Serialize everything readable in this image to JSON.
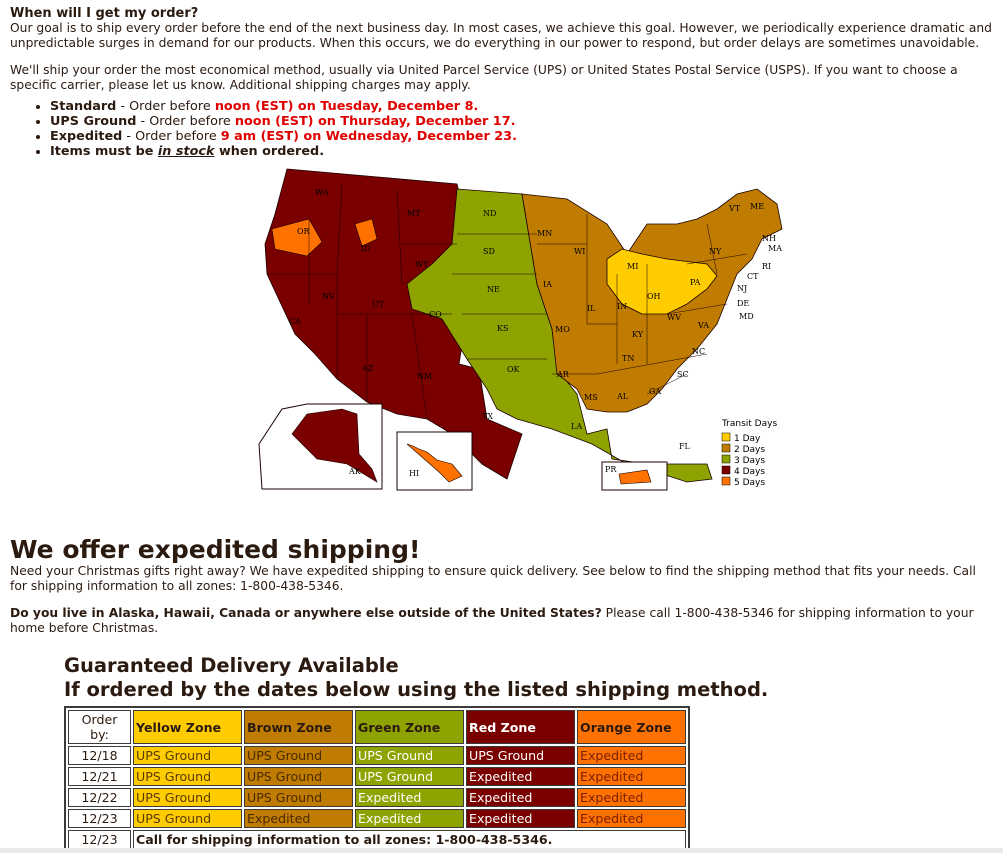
{
  "order_section": {
    "heading": "When will I get my order?",
    "paragraph1": "Our goal is to ship every order before the end of the next business day. In most cases, we achieve this goal. However, we periodically experience dramatic and unpredictable surges in demand for our products. When this occurs, we do everything in our power to respond, but order delays are sometimes unavoidable.",
    "paragraph2": "We'll ship your order the most economical method, usually via United Parcel Service (UPS) or United States Postal Service (USPS). If you want to choose a specific carrier, please let us know. Additional shipping charges may apply.",
    "bullets": [
      {
        "label": "Standard",
        "sep": " - Order before ",
        "deadline": "noon (EST) on Tuesday, December 8."
      },
      {
        "label": "UPS Ground",
        "sep": " - Order before ",
        "deadline": "noon (EST) on Thursday, December 17."
      },
      {
        "label": "Expedited",
        "sep": " - Order before ",
        "deadline": "9 am (EST) on Wednesday, December 23."
      }
    ],
    "stock_pre": "Items must be ",
    "stock_link": "in stock",
    "stock_post": " when ordered."
  },
  "map": {
    "legend_title": "Transit Days",
    "legend": [
      {
        "label": "1 Day",
        "color": "#ffcc00"
      },
      {
        "label": "2 Days",
        "color": "#c07c00"
      },
      {
        "label": "3 Days",
        "color": "#8ea300"
      },
      {
        "label": "4 Days",
        "color": "#7a0000"
      },
      {
        "label": "5 Days",
        "color": "#ff7200"
      }
    ],
    "state_labels": [
      "WA",
      "MT",
      "OR",
      "ID",
      "WY",
      "ND",
      "MN",
      "SD",
      "NE",
      "WI",
      "MI",
      "NV",
      "UT",
      "CO",
      "IA",
      "IL",
      "IN",
      "OH",
      "PA",
      "NY",
      "VT",
      "ME",
      "NH",
      "MA",
      "CT",
      "RI",
      "NJ",
      "DE",
      "MD",
      "WV",
      "VA",
      "CA",
      "AZ",
      "NM",
      "KS",
      "MO",
      "KY",
      "TN",
      "NC",
      "OK",
      "AR",
      "SC",
      "TX",
      "MS",
      "AL",
      "GA",
      "LA",
      "FL",
      "AK",
      "HI",
      "PR"
    ]
  },
  "expedited": {
    "heading": "We offer expedited shipping!",
    "paragraph": "Need your Christmas gifts right away? We have expedited shipping to ensure quick delivery. See below to find the shipping method that fits your needs. Call for shipping information to all zones: 1-800-438-5346.",
    "intl_bold": "Do you live in Alaska, Hawaii, Canada or anywhere else outside of the United States?",
    "intl_rest": " Please call 1-800-438-5346 for shipping information to your home before Christmas."
  },
  "guarantee": {
    "line1": "Guaranteed Delivery Available",
    "line2": "If ordered by the dates below using the listed shipping method."
  },
  "table": {
    "headers": [
      "Order by:",
      "Yellow Zone",
      "Brown Zone",
      "Green Zone",
      "Red Zone",
      "Orange Zone"
    ],
    "rows": [
      [
        "12/18",
        "UPS Ground",
        "UPS Ground",
        "UPS Ground",
        "UPS Ground",
        "Expedited"
      ],
      [
        "12/21",
        "UPS Ground",
        "UPS Ground",
        "UPS Ground",
        "Expedited",
        "Expedited"
      ],
      [
        "12/22",
        "UPS Ground",
        "UPS Ground",
        "Expedited",
        "Expedited",
        "Expedited"
      ],
      [
        "12/23",
        "UPS Ground",
        "Expedited",
        "Expedited",
        "Expedited",
        "Expedited"
      ]
    ],
    "last_date": "12/23",
    "last_text": "Call for shipping information to all zones: 1-800-438-5346."
  }
}
